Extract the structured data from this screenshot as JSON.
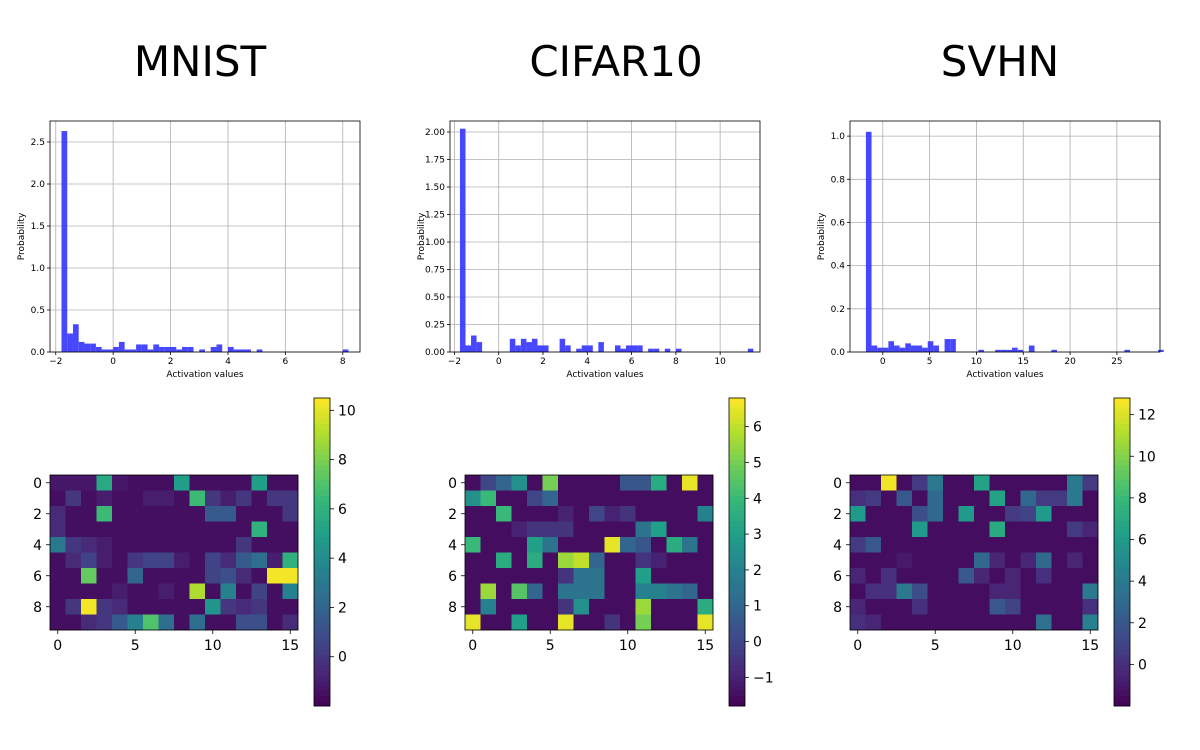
{
  "chart_data": [
    {
      "panel": "MNIST",
      "title": "MNIST",
      "histogram": {
        "type": "bar",
        "xlabel": "Activation values",
        "ylabel": "Probability",
        "xlim": [
          -2.2,
          8.6
        ],
        "ylim": [
          0,
          2.75
        ],
        "xticks": [
          -2,
          0,
          2,
          4,
          6,
          8
        ],
        "xtick_labels": [
          "−2",
          "0",
          "2",
          "4",
          "6",
          "8"
        ],
        "yticks": [
          0,
          0.5,
          1,
          1.5,
          2,
          2.5
        ],
        "ytick_labels": [
          "0.0",
          "0.5",
          "1.0",
          "1.5",
          "2.0",
          "2.5"
        ],
        "bin_start": -1.8,
        "bin_width": 0.2,
        "values": [
          2.63,
          0.22,
          0.33,
          0.12,
          0.1,
          0.1,
          0.06,
          0.03,
          0.03,
          0.06,
          0.12,
          0.03,
          0.03,
          0.09,
          0.09,
          0.03,
          0.09,
          0.06,
          0.06,
          0.06,
          0.03,
          0.06,
          0.06,
          0.0,
          0.03,
          0.0,
          0.06,
          0.09,
          0.0,
          0.06,
          0.03,
          0.03,
          0.03,
          0.0,
          0.03,
          0.0,
          0.0,
          0.0,
          0.0,
          0.0,
          0.0,
          0.0,
          0.0,
          0.0,
          0.0,
          0.0,
          0.0,
          0.0,
          0.0,
          0.03
        ],
        "grid": true,
        "color": "#3333ff"
      },
      "heatmap": {
        "type": "heatmap",
        "rows": 10,
        "cols": 16,
        "xticks": [
          0,
          5,
          10,
          15
        ],
        "yticks": [
          0,
          2,
          4,
          6,
          8
        ],
        "vmin": -2,
        "vmax": 10.5,
        "colorbar_ticks": [
          0,
          2,
          4,
          6,
          8,
          10
        ],
        "colormap": "viridis",
        "values": [
          [
            -1.2,
            -1.2,
            -1.2,
            5.5,
            -1.2,
            -1.5,
            -1.5,
            -1.5,
            5.0,
            -1.5,
            -1.5,
            -1.5,
            -1.5,
            5.0,
            -1.5,
            -1.5
          ],
          [
            -1.5,
            0.0,
            -1.5,
            -1.0,
            -1.5,
            -1.5,
            -1.0,
            -1.0,
            -1.5,
            6.5,
            0.0,
            -1.0,
            0.0,
            -1.5,
            0.0,
            0.0
          ],
          [
            -0.5,
            -1.5,
            -1.5,
            6.5,
            -1.5,
            -1.5,
            -1.5,
            -1.5,
            -1.5,
            -1.5,
            1.5,
            1.5,
            -1.5,
            -1.5,
            -1.5,
            0.0
          ],
          [
            -0.5,
            -1.5,
            -1.5,
            -1.5,
            -1.5,
            -1.5,
            -1.5,
            -1.5,
            -1.5,
            -1.5,
            -1.5,
            -1.5,
            -1.5,
            6.0,
            -1.5,
            -1.5
          ],
          [
            3.0,
            0.0,
            -0.5,
            -1.0,
            -1.5,
            -1.5,
            -1.5,
            -1.5,
            -1.5,
            -1.5,
            -1.5,
            -1.5,
            0.0,
            -1.5,
            -1.5,
            -1.5
          ],
          [
            -1.5,
            -0.5,
            0.5,
            -1.0,
            -1.5,
            0.0,
            0.5,
            0.5,
            -1.0,
            -1.5,
            0.5,
            -0.5,
            1.5,
            2.5,
            -1.0,
            6.0
          ],
          [
            -1.5,
            -1.5,
            7.5,
            -1.5,
            -1.5,
            2.0,
            -1.5,
            -1.5,
            -1.5,
            -1.5,
            0.5,
            1.0,
            -0.5,
            -1.5,
            10.3,
            10.3
          ],
          [
            -1.5,
            -1.5,
            -1.5,
            -1.5,
            -1.0,
            -1.5,
            -1.5,
            -1.0,
            -1.5,
            9.0,
            -1.5,
            3.5,
            -1.5,
            0.5,
            -1.5,
            3.5
          ],
          [
            -1.5,
            0.0,
            10.3,
            0.0,
            -0.5,
            -1.5,
            -1.5,
            -1.5,
            -1.5,
            -1.5,
            4.5,
            0.0,
            -0.5,
            0.0,
            -1.5,
            -1.5
          ],
          [
            -1.5,
            -1.5,
            -0.5,
            0.0,
            1.5,
            3.5,
            7.0,
            2.5,
            -1.5,
            2.5,
            -1.5,
            -1.5,
            1.0,
            1.0,
            -1.5,
            -0.5
          ]
        ]
      }
    },
    {
      "panel": "CIFAR10",
      "title": "CIFAR10",
      "histogram": {
        "type": "bar",
        "xlabel": "Activation values",
        "ylabel": "Probability",
        "xlim": [
          -2.2,
          11.8
        ],
        "ylim": [
          0,
          2.1
        ],
        "xticks": [
          -2,
          0,
          2,
          4,
          6,
          8,
          10
        ],
        "xtick_labels": [
          "−2",
          "0",
          "2",
          "4",
          "6",
          "8",
          "10"
        ],
        "yticks": [
          0,
          0.25,
          0.5,
          0.75,
          1,
          1.25,
          1.5,
          1.75,
          2
        ],
        "ytick_labels": [
          "0.00",
          "0.25",
          "0.50",
          "0.75",
          "1.00",
          "1.25",
          "1.50",
          "1.75",
          "2.00"
        ],
        "bin_start": -1.75,
        "bin_width": 0.25,
        "values": [
          2.03,
          0.06,
          0.15,
          0.09,
          0.0,
          0.0,
          0.0,
          0.0,
          0.0,
          0.12,
          0.06,
          0.12,
          0.09,
          0.12,
          0.06,
          0.06,
          0.0,
          0.0,
          0.12,
          0.06,
          0.0,
          0.03,
          0.06,
          0.06,
          0.0,
          0.09,
          0.0,
          0.0,
          0.06,
          0.03,
          0.06,
          0.06,
          0.06,
          0.0,
          0.03,
          0.03,
          0.0,
          0.03,
          0.0,
          0.03,
          0.0,
          0.0,
          0.0,
          0.0,
          0.0,
          0.0,
          0.0,
          0.0,
          0.0,
          0.0,
          0.0,
          0.0,
          0.03
        ],
        "grid": true,
        "color": "#3333ff"
      },
      "heatmap": {
        "type": "heatmap",
        "rows": 10,
        "cols": 16,
        "xticks": [
          0,
          5,
          10,
          15
        ],
        "yticks": [
          0,
          2,
          4,
          6,
          8
        ],
        "vmin": -1.8,
        "vmax": 6.8,
        "colorbar_ticks": [
          -1,
          0,
          1,
          2,
          3,
          4,
          5,
          6
        ],
        "colorbar_tick_labels": [
          "−1",
          "0",
          "1",
          "2",
          "3",
          "4",
          "5",
          "6"
        ],
        "colormap": "viridis",
        "values": [
          [
            -1.5,
            0.0,
            1.0,
            2.5,
            -1.5,
            5.0,
            -1.5,
            -1.5,
            -1.5,
            -1.5,
            0.5,
            0.5,
            3.5,
            -1.5,
            6.5,
            -1.5
          ],
          [
            2.5,
            4.0,
            -1.5,
            -1.5,
            0.0,
            1.0,
            -1.5,
            -1.5,
            -1.5,
            -1.5,
            -1.5,
            -1.5,
            -1.5,
            -1.5,
            -1.5,
            -1.5
          ],
          [
            -1.5,
            -1.5,
            4.0,
            -1.5,
            -1.5,
            -1.5,
            -1.0,
            -1.5,
            0.0,
            -1.0,
            -0.5,
            -1.5,
            -1.5,
            -1.5,
            -1.5,
            2.0
          ],
          [
            -1.5,
            -1.5,
            -1.5,
            -1.0,
            -0.5,
            -0.5,
            -0.5,
            -1.5,
            -1.5,
            -1.5,
            -1.5,
            1.5,
            3.0,
            -1.5,
            -1.5,
            -1.5
          ],
          [
            4.0,
            -1.5,
            -1.5,
            -1.5,
            3.0,
            1.5,
            -1.5,
            -1.5,
            -1.5,
            6.5,
            1.0,
            0.5,
            -1.5,
            3.5,
            1.5,
            -1.5
          ],
          [
            -1.5,
            -1.5,
            3.5,
            -1.5,
            3.5,
            -1.5,
            5.5,
            6.0,
            1.0,
            -1.5,
            -1.5,
            -0.5,
            -1.0,
            -1.5,
            -1.5,
            -1.5
          ],
          [
            -1.5,
            -1.5,
            -1.5,
            -1.5,
            -1.5,
            -1.5,
            -0.5,
            1.5,
            1.5,
            -1.5,
            -1.5,
            3.0,
            -1.5,
            -1.5,
            -1.5,
            -1.5
          ],
          [
            -1.5,
            5.5,
            -1.5,
            4.5,
            1.0,
            -1.5,
            1.5,
            1.5,
            1.5,
            -1.5,
            -1.5,
            2.0,
            2.0,
            1.5,
            1.0,
            -1.5
          ],
          [
            -1.5,
            2.0,
            -1.5,
            -1.5,
            -1.5,
            -1.5,
            -0.5,
            2.5,
            -1.5,
            -1.5,
            -1.5,
            5.5,
            -1.5,
            -1.5,
            -1.5,
            3.5
          ],
          [
            6.5,
            -1.5,
            -1.5,
            3.0,
            -1.5,
            -1.5,
            6.5,
            -1.5,
            -1.5,
            -0.5,
            -1.5,
            5.0,
            -1.5,
            -1.5,
            -1.5,
            6.5
          ]
        ]
      }
    },
    {
      "panel": "SVHN",
      "title": "SVHN",
      "histogram": {
        "type": "bar",
        "xlabel": "Activation values",
        "ylabel": "Probability",
        "xlim": [
          -3.5,
          29.6
        ],
        "ylim": [
          0,
          1.07
        ],
        "xticks": [
          0,
          5,
          10,
          15,
          20,
          25
        ],
        "xtick_labels": [
          "0",
          "5",
          "10",
          "15",
          "20",
          "25"
        ],
        "yticks": [
          0,
          0.2,
          0.4,
          0.6,
          0.8,
          1
        ],
        "ytick_labels": [
          "0.0",
          "0.2",
          "0.4",
          "0.6",
          "0.8",
          "1.0"
        ],
        "bin_start": -1.8,
        "bin_width": 0.6,
        "values": [
          1.02,
          0.03,
          0.02,
          0.02,
          0.05,
          0.03,
          0.02,
          0.04,
          0.03,
          0.03,
          0.02,
          0.05,
          0.03,
          0.0,
          0.06,
          0.06,
          0.0,
          0.0,
          0.0,
          0.0,
          0.01,
          0.0,
          0.0,
          0.01,
          0.01,
          0.01,
          0.02,
          0.01,
          0.0,
          0.03,
          0.0,
          0.0,
          0.0,
          0.01,
          0.0,
          0.0,
          0.0,
          0.0,
          0.0,
          0.0,
          0.0,
          0.0,
          0.0,
          0.0,
          0.0,
          0.0,
          0.01,
          0.0,
          0.0,
          0.0,
          0.0,
          0.0,
          0.01
        ],
        "grid": true,
        "color": "#3333ff"
      },
      "heatmap": {
        "type": "heatmap",
        "rows": 10,
        "cols": 16,
        "xticks": [
          0,
          5,
          10,
          15
        ],
        "yticks": [
          0,
          2,
          4,
          6,
          8
        ],
        "vmin": -2,
        "vmax": 12.8,
        "colorbar_ticks": [
          0,
          2,
          4,
          6,
          8,
          10,
          12
        ],
        "colormap": "viridis",
        "values": [
          [
            -1.5,
            -1.5,
            12.5,
            -1.5,
            0.5,
            4.0,
            -1.5,
            -1.5,
            6.5,
            -1.5,
            -1.5,
            -1.5,
            -1.5,
            -1.5,
            4.0,
            0.5
          ],
          [
            0.0,
            0.5,
            -1.5,
            2.0,
            -1.5,
            3.0,
            -1.5,
            -1.5,
            -1.5,
            6.5,
            -1.5,
            3.0,
            0.5,
            0.5,
            4.0,
            -1.5
          ],
          [
            6.0,
            -1.5,
            -1.5,
            -1.5,
            1.5,
            3.0,
            -1.5,
            6.0,
            -1.5,
            -1.5,
            0.5,
            1.0,
            6.0,
            -1.5,
            -1.5,
            -1.5
          ],
          [
            -1.5,
            -1.5,
            -1.5,
            -1.5,
            6.0,
            -1.5,
            -1.5,
            -1.5,
            -1.5,
            7.0,
            -1.5,
            -1.5,
            -1.5,
            -1.5,
            0.5,
            -0.5
          ],
          [
            0.5,
            2.0,
            -1.5,
            -1.5,
            -1.5,
            -1.5,
            -1.5,
            -1.5,
            -1.5,
            -1.5,
            -1.5,
            -1.5,
            -1.5,
            -1.5,
            -1.5,
            -1.5
          ],
          [
            -1.5,
            -1.5,
            -1.5,
            -1.0,
            -1.5,
            -1.5,
            -1.5,
            -1.5,
            3.0,
            -0.5,
            -1.5,
            -0.5,
            3.0,
            -1.5,
            -0.5,
            -1.5
          ],
          [
            -0.5,
            -1.5,
            0.0,
            -1.5,
            -1.5,
            -1.5,
            -1.5,
            2.0,
            -0.5,
            -1.5,
            -0.5,
            -1.5,
            0.0,
            -1.5,
            -1.5,
            -1.5
          ],
          [
            -1.5,
            0.0,
            0.0,
            4.0,
            1.5,
            -1.5,
            -1.5,
            -1.5,
            -1.5,
            -0.5,
            -0.5,
            -1.5,
            -1.5,
            -1.5,
            -1.5,
            4.0
          ],
          [
            -0.5,
            -1.5,
            -1.5,
            -1.5,
            0.0,
            -1.5,
            -1.5,
            -1.5,
            -1.5,
            2.0,
            1.0,
            -1.5,
            -1.5,
            -1.5,
            -1.5,
            0.0
          ],
          [
            0.0,
            -0.5,
            -1.5,
            -1.5,
            -1.5,
            -1.5,
            -1.5,
            -1.5,
            -1.5,
            -1.5,
            -1.5,
            -1.5,
            3.5,
            -1.5,
            -1.5,
            4.5
          ]
        ]
      }
    }
  ]
}
